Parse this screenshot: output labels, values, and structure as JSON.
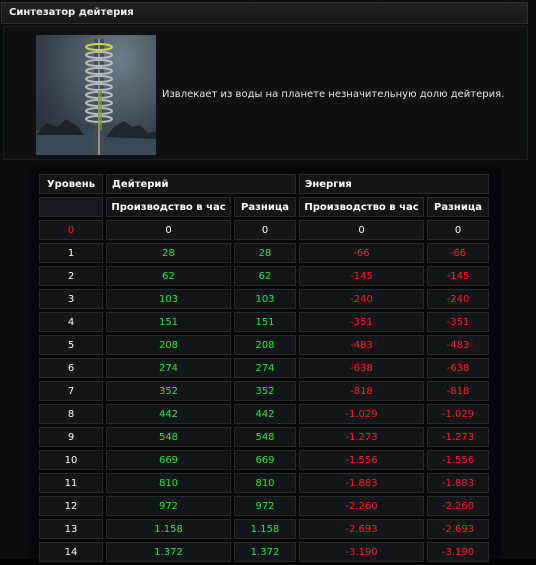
{
  "window": {
    "title": "Синтезатор дейтерия"
  },
  "info": {
    "description": "Извлекает из воды на планете незначительную долю дейтерия.",
    "image_icon": "deuterium-synthesizer-image"
  },
  "table": {
    "header_level": "Уровень",
    "header_deuterium": "Дейтерий",
    "header_energy": "Энергия",
    "sub_production": "Производство в час",
    "sub_diff": "Разница",
    "colors": {
      "positive": "#2ee52e",
      "negative": "#ff2020",
      "current_level": "#ff2020"
    },
    "rows": [
      {
        "level": "0",
        "d_prod": "0",
        "d_diff": "0",
        "e_prod": "0",
        "e_diff": "0"
      },
      {
        "level": "1",
        "d_prod": "28",
        "d_diff": "28",
        "e_prod": "-66",
        "e_diff": "-66"
      },
      {
        "level": "2",
        "d_prod": "62",
        "d_diff": "62",
        "e_prod": "-145",
        "e_diff": "-145"
      },
      {
        "level": "3",
        "d_prod": "103",
        "d_diff": "103",
        "e_prod": "-240",
        "e_diff": "-240"
      },
      {
        "level": "4",
        "d_prod": "151",
        "d_diff": "151",
        "e_prod": "-351",
        "e_diff": "-351"
      },
      {
        "level": "5",
        "d_prod": "208",
        "d_diff": "208",
        "e_prod": "-483",
        "e_diff": "-483"
      },
      {
        "level": "6",
        "d_prod": "274",
        "d_diff": "274",
        "e_prod": "-638",
        "e_diff": "-638"
      },
      {
        "level": "7",
        "d_prod": "352",
        "d_diff": "352",
        "e_prod": "-818",
        "e_diff": "-818"
      },
      {
        "level": "8",
        "d_prod": "442",
        "d_diff": "442",
        "e_prod": "-1.029",
        "e_diff": "-1.029"
      },
      {
        "level": "9",
        "d_prod": "548",
        "d_diff": "548",
        "e_prod": "-1.273",
        "e_diff": "-1.273"
      },
      {
        "level": "10",
        "d_prod": "669",
        "d_diff": "669",
        "e_prod": "-1.556",
        "e_diff": "-1.556"
      },
      {
        "level": "11",
        "d_prod": "810",
        "d_diff": "810",
        "e_prod": "-1.883",
        "e_diff": "-1.883"
      },
      {
        "level": "12",
        "d_prod": "972",
        "d_diff": "972",
        "e_prod": "-2.260",
        "e_diff": "-2.260"
      },
      {
        "level": "13",
        "d_prod": "1.158",
        "d_diff": "1.158",
        "e_prod": "-2.693",
        "e_diff": "-2.693"
      },
      {
        "level": "14",
        "d_prod": "1.372",
        "d_diff": "1.372",
        "e_prod": "-3.190",
        "e_diff": "-3.190"
      }
    ]
  }
}
